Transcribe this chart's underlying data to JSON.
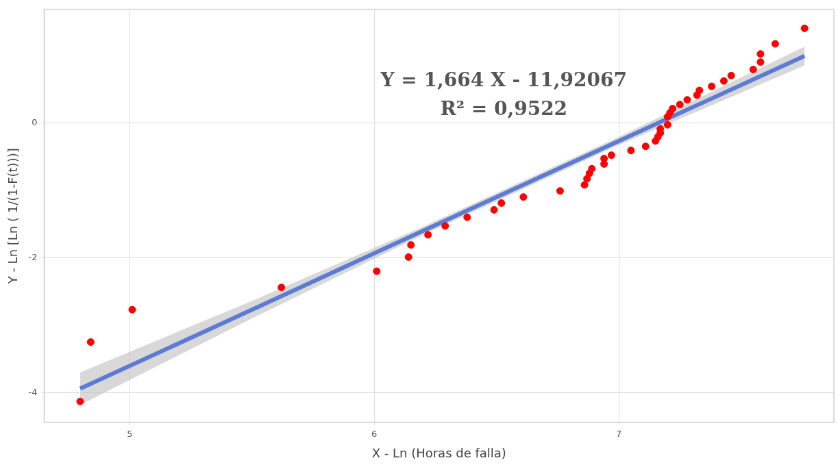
{
  "chart_data": {
    "type": "scatter",
    "xlabel": "X - Ln (Horas de falla)",
    "ylabel": "Y - Ln [Ln ( 1/(1-F(t)))]",
    "annotations": [
      "Y = 1,664 X - 11,92067",
      "R² = 0,9522"
    ],
    "xlim": [
      4.65,
      7.88
    ],
    "ylim": [
      -4.44,
      1.68
    ],
    "xticks": [
      5,
      6,
      7
    ],
    "yticks": [
      -4,
      -2,
      0
    ],
    "grid": true,
    "legend": false,
    "series": [
      {
        "color": "#ff0000",
        "marker": "circle",
        "x": [
          4.797,
          4.84,
          5.01,
          5.62,
          6.01,
          6.14,
          6.15,
          6.22,
          6.29,
          6.38,
          6.49,
          6.52,
          6.61,
          6.76,
          6.86,
          6.87,
          6.88,
          6.89,
          6.94,
          6.94,
          6.97,
          7.05,
          7.11,
          7.15,
          7.16,
          7.17,
          7.17,
          7.2,
          7.2,
          7.21,
          7.22,
          7.25,
          7.28,
          7.32,
          7.33,
          7.38,
          7.43,
          7.46,
          7.55,
          7.58,
          7.58,
          7.64,
          7.76
        ],
        "values": [
          -4.13,
          -3.25,
          -2.77,
          -2.44,
          -2.2,
          -1.99,
          -1.81,
          -1.66,
          -1.53,
          -1.4,
          -1.29,
          -1.19,
          -1.1,
          -1.01,
          -0.92,
          -0.83,
          -0.75,
          -0.68,
          -0.61,
          -0.53,
          -0.48,
          -0.41,
          -0.35,
          -0.27,
          -0.21,
          -0.15,
          -0.09,
          -0.03,
          0.09,
          0.15,
          0.21,
          0.27,
          0.34,
          0.41,
          0.48,
          0.54,
          0.62,
          0.7,
          0.79,
          0.9,
          1.02,
          1.17,
          1.4
        ]
      },
      {
        "type": "line",
        "color": "#5b7bd5",
        "x": [
          4.797,
          5.5,
          6.2,
          7.0,
          7.76
        ],
        "values": [
          -3.94,
          -2.77,
          -1.6,
          -0.27,
          0.99
        ],
        "lower": [
          -4.18,
          -2.9,
          -1.66,
          -0.33,
          0.85
        ],
        "upper": [
          -3.7,
          -2.64,
          -1.54,
          -0.21,
          1.13
        ]
      }
    ]
  }
}
